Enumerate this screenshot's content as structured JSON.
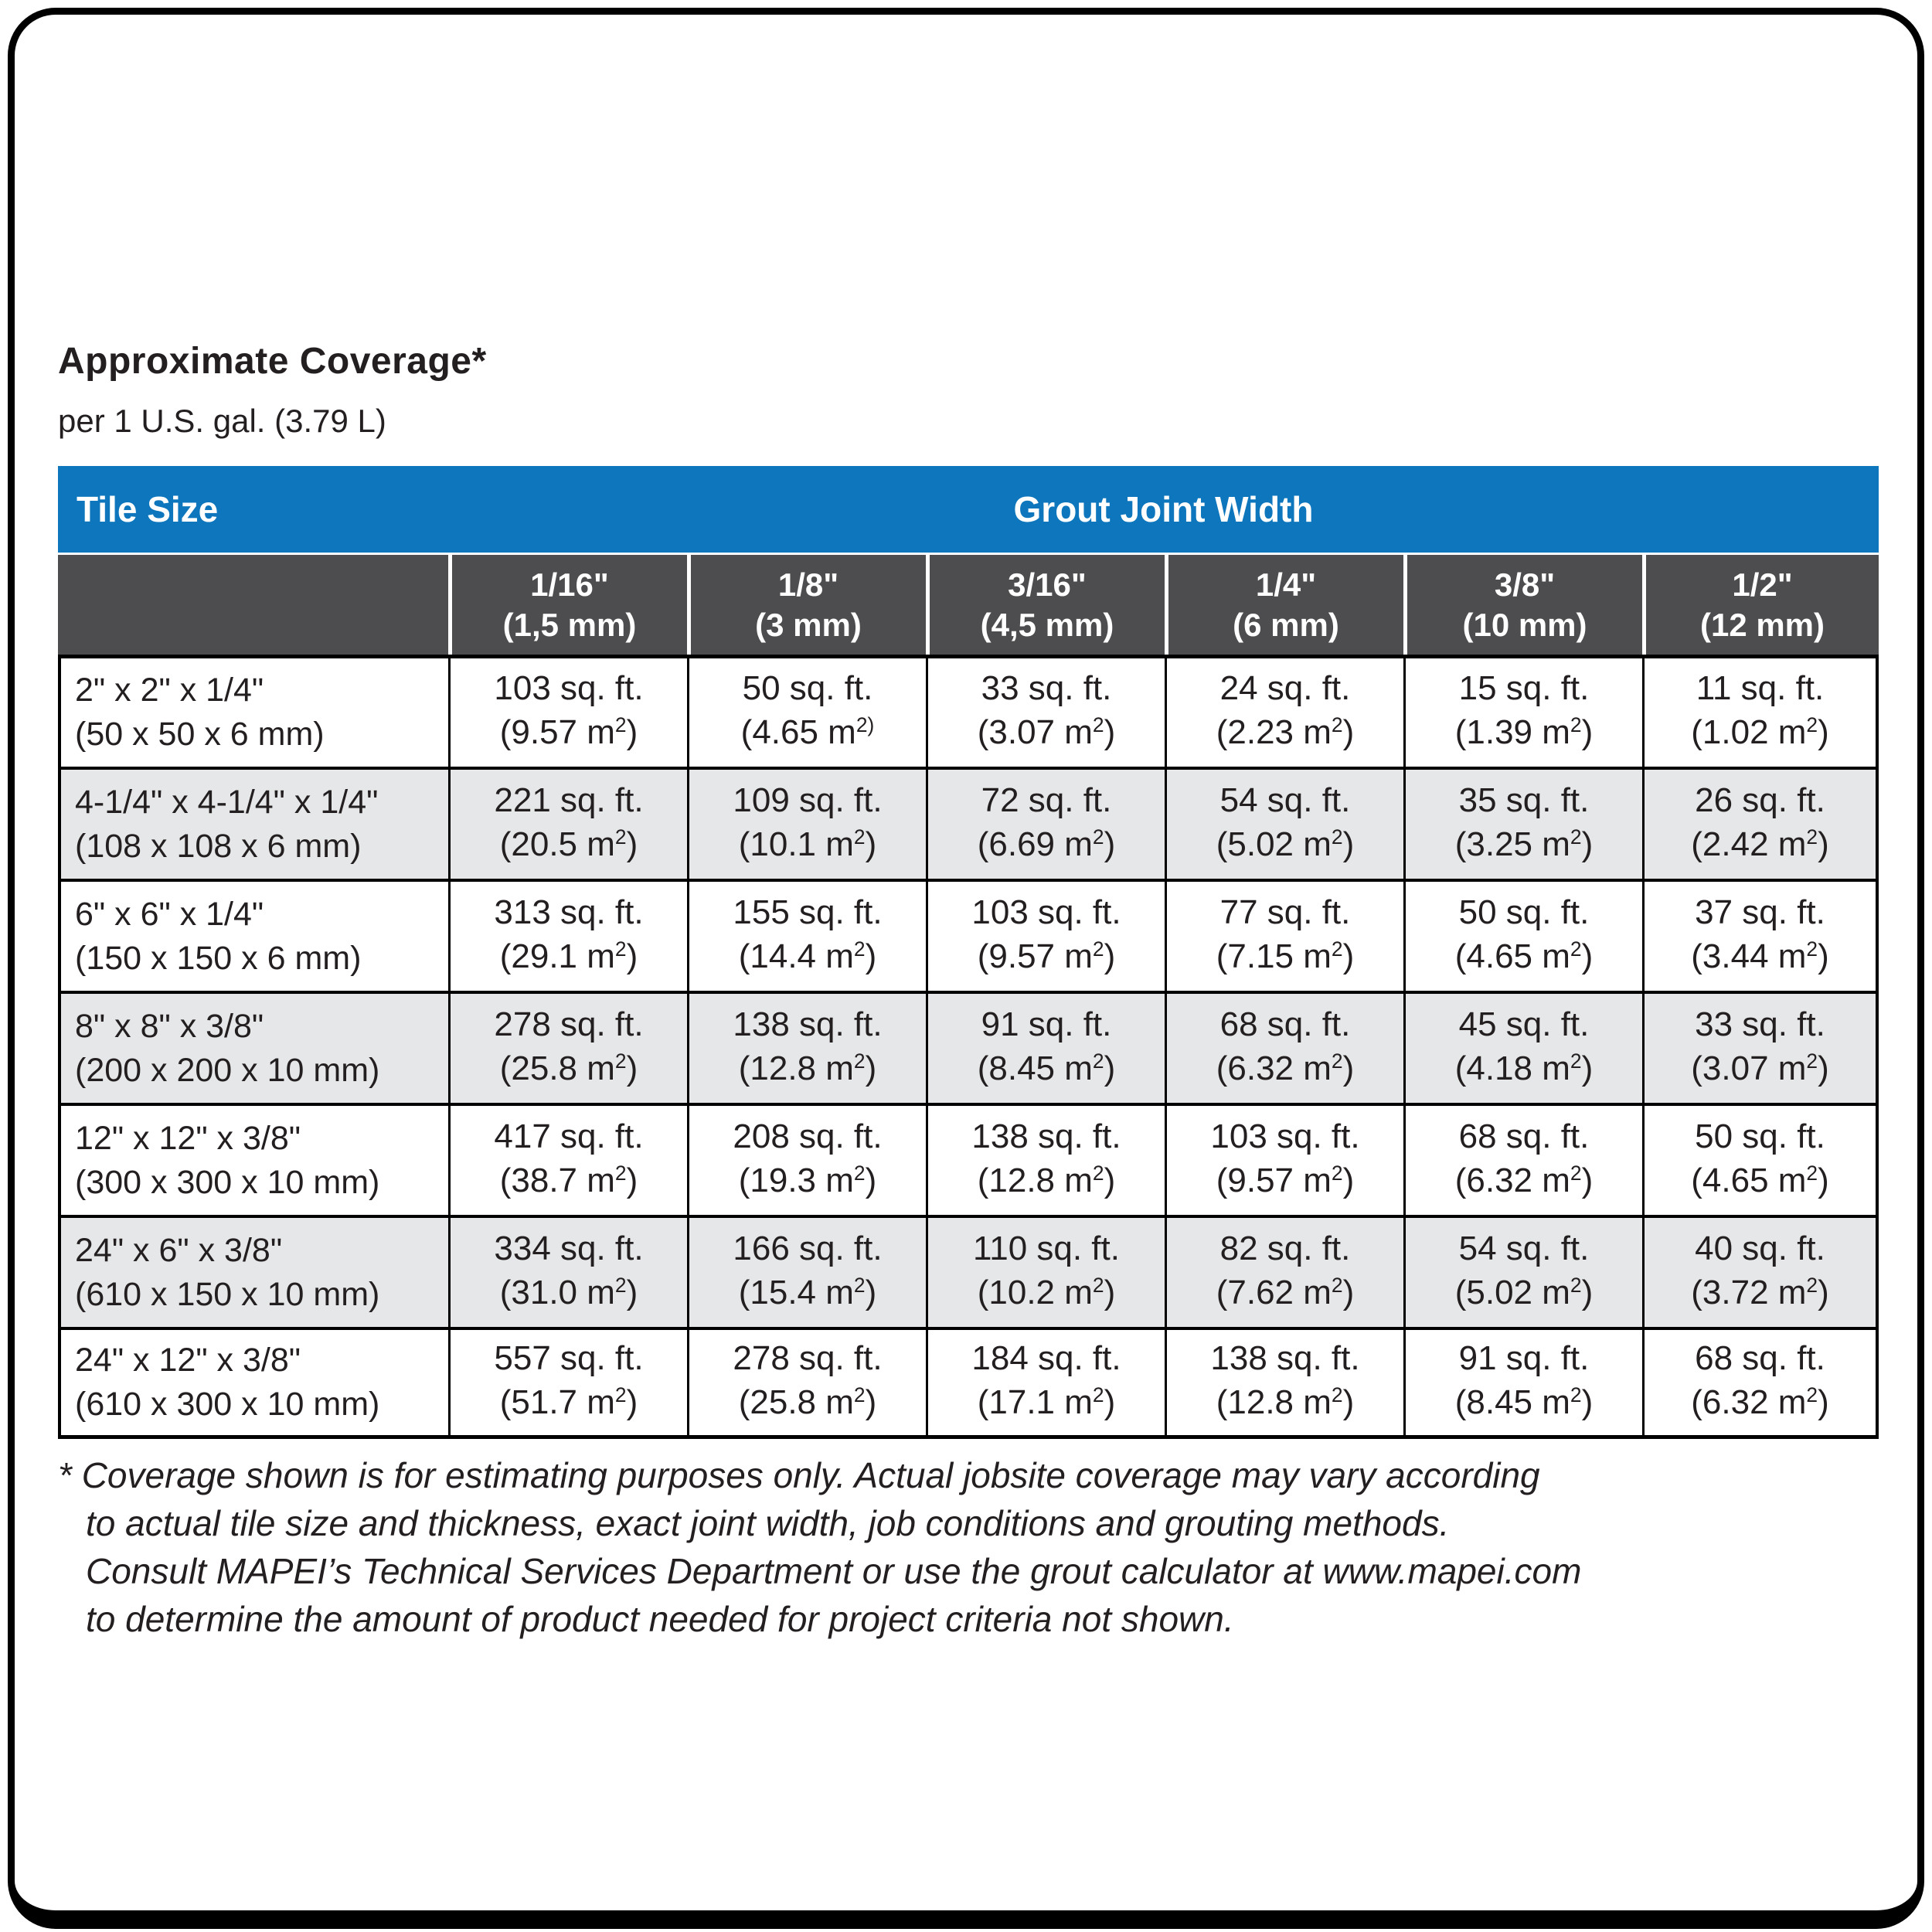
{
  "page": {
    "title": "Approximate Coverage*",
    "subtitle": "per 1 U.S. gal. (3.79 L)"
  },
  "table": {
    "corner_label": "Tile Size",
    "group_header": "Grout Joint Width",
    "columns": [
      {
        "line1": "1/16\"",
        "line2": "(1,5 mm)"
      },
      {
        "line1": "1/8\"",
        "line2": "(3 mm)"
      },
      {
        "line1": "3/16\"",
        "line2": "(4,5 mm)"
      },
      {
        "line1": "1/4\"",
        "line2": "(6 mm)"
      },
      {
        "line1": "3/8\"",
        "line2": "(10 mm)"
      },
      {
        "line1": "1/2\"",
        "line2": "(12 mm)"
      }
    ],
    "rows": [
      {
        "tile": [
          "2\" x 2\" x 1/4\"",
          "(50 x 50 x 6 mm)"
        ],
        "cells": [
          {
            "ft": "103 sq. ft.",
            "m_pre": "(9.57 m",
            "sup": "2",
            "post": ")"
          },
          {
            "ft": "50 sq. ft.",
            "m_pre": "(4.65 m",
            "sup": "2)",
            "post": ""
          },
          {
            "ft": "33 sq. ft.",
            "m_pre": "(3.07 m",
            "sup": "2",
            "post": ")"
          },
          {
            "ft": "24 sq. ft.",
            "m_pre": "(2.23 m",
            "sup": "2",
            "post": ")"
          },
          {
            "ft": "15 sq. ft.",
            "m_pre": "(1.39 m",
            "sup": "2",
            "post": ")"
          },
          {
            "ft": "11 sq. ft.",
            "m_pre": "(1.02 m",
            "sup": "2",
            "post": ")"
          }
        ]
      },
      {
        "tile": [
          "4-1/4\" x 4-1/4\" x 1/4\"",
          "(108 x 108 x 6 mm)"
        ],
        "cells": [
          {
            "ft": "221 sq. ft.",
            "m_pre": "(20.5 m",
            "sup": "2",
            "post": ")"
          },
          {
            "ft": "109 sq. ft.",
            "m_pre": "(10.1 m",
            "sup": "2",
            "post": ")"
          },
          {
            "ft": "72 sq. ft.",
            "m_pre": "(6.69 m",
            "sup": "2",
            "post": ")"
          },
          {
            "ft": "54 sq. ft.",
            "m_pre": "(5.02 m",
            "sup": "2",
            "post": ")"
          },
          {
            "ft": "35 sq. ft.",
            "m_pre": "(3.25 m",
            "sup": "2",
            "post": ")"
          },
          {
            "ft": "26 sq. ft.",
            "m_pre": "(2.42 m",
            "sup": "2",
            "post": ")"
          }
        ]
      },
      {
        "tile": [
          "6\" x 6\" x 1/4\"",
          "(150 x 150 x 6 mm)"
        ],
        "cells": [
          {
            "ft": "313 sq. ft.",
            "m_pre": "(29.1 m",
            "sup": "2",
            "post": ")"
          },
          {
            "ft": "155 sq. ft.",
            "m_pre": "(14.4 m",
            "sup": "2",
            "post": ")"
          },
          {
            "ft": "103 sq. ft.",
            "m_pre": "(9.57 m",
            "sup": "2",
            "post": ")"
          },
          {
            "ft": "77 sq. ft.",
            "m_pre": "(7.15 m",
            "sup": "2",
            "post": ")"
          },
          {
            "ft": "50 sq. ft.",
            "m_pre": "(4.65 m",
            "sup": "2",
            "post": ")"
          },
          {
            "ft": "37 sq. ft.",
            "m_pre": "(3.44 m",
            "sup": "2",
            "post": ")"
          }
        ]
      },
      {
        "tile": [
          "8\" x 8\" x 3/8\"",
          "(200 x 200 x 10 mm)"
        ],
        "cells": [
          {
            "ft": "278 sq. ft.",
            "m_pre": "(25.8 m",
            "sup": "2",
            "post": ")"
          },
          {
            "ft": "138 sq. ft.",
            "m_pre": "(12.8 m",
            "sup": "2",
            "post": ")"
          },
          {
            "ft": "91 sq. ft.",
            "m_pre": "(8.45 m",
            "sup": "2",
            "post": ")"
          },
          {
            "ft": "68 sq. ft.",
            "m_pre": "(6.32 m",
            "sup": "2",
            "post": ")"
          },
          {
            "ft": "45 sq. ft.",
            "m_pre": "(4.18 m",
            "sup": "2",
            "post": ")"
          },
          {
            "ft": "33 sq. ft.",
            "m_pre": "(3.07 m",
            "sup": "2",
            "post": ")"
          }
        ]
      },
      {
        "tile": [
          "12\" x 12\" x 3/8\"",
          "(300 x 300 x 10 mm)"
        ],
        "cells": [
          {
            "ft": "417 sq. ft.",
            "m_pre": "(38.7 m",
            "sup": "2",
            "post": ")"
          },
          {
            "ft": "208 sq. ft.",
            "m_pre": "(19.3 m",
            "sup": "2",
            "post": ")"
          },
          {
            "ft": "138 sq. ft.",
            "m_pre": "(12.8 m",
            "sup": "2",
            "post": ")"
          },
          {
            "ft": "103 sq. ft.",
            "m_pre": "(9.57 m",
            "sup": "2",
            "post": ")"
          },
          {
            "ft": "68 sq. ft.",
            "m_pre": "(6.32 m",
            "sup": "2",
            "post": ")"
          },
          {
            "ft": "50 sq. ft.",
            "m_pre": "(4.65 m",
            "sup": "2",
            "post": ")"
          }
        ]
      },
      {
        "tile": [
          "24\" x 6\" x 3/8\"",
          "(610 x 150 x 10 mm)"
        ],
        "cells": [
          {
            "ft": "334 sq. ft.",
            "m_pre": "(31.0 m",
            "sup": "2",
            "post": ")"
          },
          {
            "ft": "166 sq. ft.",
            "m_pre": "(15.4 m",
            "sup": "2",
            "post": ")"
          },
          {
            "ft": "110 sq. ft.",
            "m_pre": "(10.2 m",
            "sup": "2",
            "post": ")"
          },
          {
            "ft": "82 sq. ft.",
            "m_pre": "(7.62 m",
            "sup": "2",
            "post": ")"
          },
          {
            "ft": "54 sq. ft.",
            "m_pre": "(5.02 m",
            "sup": "2",
            "post": ")"
          },
          {
            "ft": "40 sq. ft.",
            "m_pre": "(3.72 m",
            "sup": "2",
            "post": ")"
          }
        ]
      },
      {
        "tile": [
          "24\" x 12\" x 3/8\"",
          "(610 x 300 x 10 mm)"
        ],
        "cells": [
          {
            "ft": "557 sq. ft.",
            "m_pre": "(51.7 m",
            "sup": "2",
            "post": ")"
          },
          {
            "ft": "278 sq. ft.",
            "m_pre": "(25.8 m",
            "sup": "2",
            "post": ")"
          },
          {
            "ft": "184 sq. ft.",
            "m_pre": "(17.1 m",
            "sup": "2",
            "post": ")"
          },
          {
            "ft": "138 sq. ft.",
            "m_pre": "(12.8 m",
            "sup": "2",
            "post": ")"
          },
          {
            "ft": "91 sq. ft.",
            "m_pre": "(8.45 m",
            "sup": "2",
            "post": ")"
          },
          {
            "ft": "68 sq. ft.",
            "m_pre": "(6.32 m",
            "sup": "2",
            "post": ")"
          }
        ]
      }
    ]
  },
  "footnote": {
    "marker": "*",
    "lines": [
      "Coverage shown is for estimating purposes only. Actual jobsite coverage may vary according",
      "to actual tile size and thickness, exact joint width, job conditions and grouting methods.",
      "Consult MAPEI’s Technical Services Department or use the grout calculator at www.mapei.com",
      "to determine the amount of product needed for project criteria not shown."
    ]
  },
  "colors": {
    "header_blue": "#0e76bc",
    "header_gray": "#4d4d4f",
    "row_alt_gray": "#e6e7e8",
    "text_dark": "#231f20"
  }
}
